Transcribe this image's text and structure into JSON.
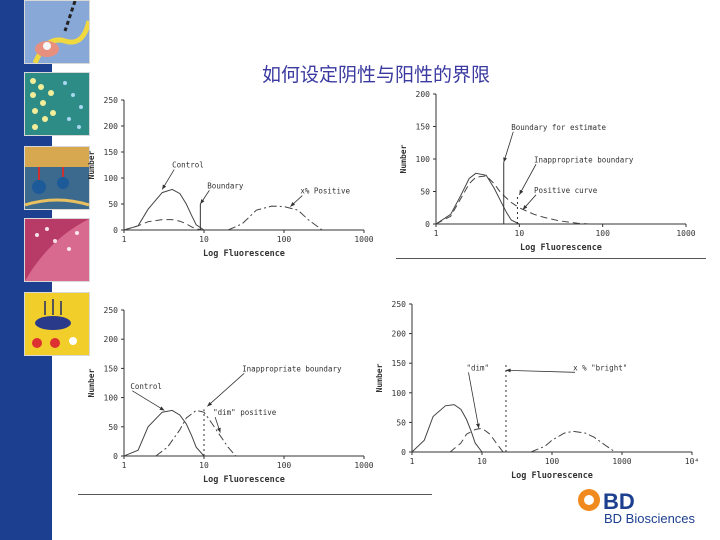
{
  "slide": {
    "title": "如何设定阴性与阳性的界限",
    "brand": "BD Biosciences",
    "brand_mark": "BD"
  },
  "chart_data": [
    {
      "type": "line",
      "xscale": "log",
      "xlim": [
        1,
        1000
      ],
      "ylim": [
        0,
        250
      ],
      "xticks": [
        "1",
        "10",
        "100",
        "1000"
      ],
      "yticks": [
        "0",
        "50",
        "100",
        "150",
        "200",
        "250"
      ],
      "xlabel": "Log Fluorescence",
      "ylabel": "Number",
      "series": [
        {
          "style": "solid",
          "x": [
            1,
            1.5,
            2,
            3,
            4,
            5,
            6,
            7,
            8,
            10
          ],
          "y": [
            0,
            8,
            40,
            72,
            78,
            70,
            50,
            28,
            10,
            0
          ]
        },
        {
          "style": "dashed",
          "x": [
            1,
            1.5,
            2,
            3,
            4,
            5,
            6,
            7,
            8,
            10
          ],
          "y": [
            0,
            8,
            16,
            20,
            20,
            17,
            12,
            6,
            2,
            0
          ]
        },
        {
          "style": "dashdot",
          "x": [
            20,
            30,
            45,
            70,
            100,
            150,
            200,
            300
          ],
          "y": [
            0,
            12,
            38,
            46,
            45,
            38,
            20,
            0
          ]
        }
      ],
      "vlines": [
        {
          "x": 9,
          "y1": 0,
          "y2": 50,
          "style": "solid"
        }
      ],
      "annotations": [
        {
          "text": "Control",
          "x": 4,
          "y": 120,
          "ax": 3,
          "ay": 78
        },
        {
          "text": "Boundary",
          "x": 11,
          "y": 80,
          "ax": 9,
          "ay": 50
        },
        {
          "text": "x% Positive",
          "x": 160,
          "y": 70,
          "ax": 120,
          "ay": 45
        }
      ]
    },
    {
      "type": "line",
      "xscale": "log",
      "xlim": [
        1,
        1000
      ],
      "ylim": [
        0,
        200
      ],
      "xticks": [
        "1",
        "10",
        "100",
        "1000"
      ],
      "yticks": [
        "0",
        "50",
        "100",
        "150",
        "200"
      ],
      "xlabel": "Log Fluorescence",
      "ylabel": "Number",
      "series": [
        {
          "style": "solid",
          "x": [
            1,
            1.5,
            2,
            2.5,
            3,
            4,
            5,
            6,
            7,
            8,
            10
          ],
          "y": [
            0,
            15,
            45,
            70,
            78,
            75,
            55,
            35,
            18,
            6,
            0
          ]
        },
        {
          "style": "dashed",
          "x": [
            1,
            1.5,
            2,
            2.5,
            3,
            4,
            5,
            6,
            8,
            10,
            15,
            20,
            30,
            50,
            70
          ],
          "y": [
            0,
            12,
            40,
            62,
            72,
            74,
            62,
            48,
            33,
            25,
            15,
            10,
            5,
            1,
            0
          ]
        }
      ],
      "vlines": [
        {
          "x": 6.5,
          "y1": 0,
          "y2": 95,
          "style": "solid"
        },
        {
          "x": 9.5,
          "y1": 0,
          "y2": 45,
          "style": "dotted"
        }
      ],
      "annotations": [
        {
          "text": "Boundary for estimate",
          "x": 8,
          "y": 145,
          "ax": 6.5,
          "ay": 95
        },
        {
          "text": "Inappropriate boundary",
          "x": 15,
          "y": 95,
          "ax": 10,
          "ay": 45
        },
        {
          "text": "Positive curve",
          "x": 15,
          "y": 48,
          "ax": 11,
          "ay": 22
        }
      ]
    },
    {
      "type": "line",
      "xscale": "log",
      "xlim": [
        1,
        1000
      ],
      "ylim": [
        0,
        250
      ],
      "xticks": [
        "1",
        "10",
        "100",
        "1000"
      ],
      "yticks": [
        "0",
        "50",
        "100",
        "150",
        "200",
        "250"
      ],
      "xlabel": "Log Fluorescence",
      "ylabel": "Number",
      "series": [
        {
          "style": "solid",
          "x": [
            1,
            1.5,
            2,
            3,
            4,
            5,
            6,
            7,
            8,
            10
          ],
          "y": [
            0,
            10,
            50,
            75,
            78,
            70,
            55,
            35,
            15,
            0
          ]
        },
        {
          "style": "dashdot",
          "x": [
            2.5,
            3.5,
            5,
            6,
            8,
            10,
            12,
            15,
            20,
            25
          ],
          "y": [
            0,
            15,
            45,
            65,
            78,
            75,
            60,
            40,
            15,
            0
          ]
        }
      ],
      "vlines": [
        {
          "x": 10,
          "y1": 0,
          "y2": 80,
          "style": "dotted"
        }
      ],
      "annotations": [
        {
          "text": "Inappropriate boundary",
          "x": 30,
          "y": 145,
          "ax": 11,
          "ay": 85
        },
        {
          "text": "Control",
          "x": 1.2,
          "y": 115,
          "ax": 3.2,
          "ay": 78
        },
        {
          "text": "\"dim\" positive",
          "x": 13,
          "y": 70,
          "ax": 16,
          "ay": 40
        }
      ]
    },
    {
      "type": "line",
      "xscale": "log",
      "xlim": [
        1,
        10000
      ],
      "ylim": [
        0,
        250
      ],
      "xticks": [
        "1",
        "10",
        "100",
        "1000",
        "10⁴"
      ],
      "yticks": [
        "0",
        "50",
        "100",
        "150",
        "200",
        "250"
      ],
      "xlabel": "Log Fluorescence",
      "ylabel": "Number",
      "series": [
        {
          "style": "solid",
          "x": [
            1,
            1.5,
            2,
            3,
            4,
            5,
            6,
            7,
            8,
            10
          ],
          "y": [
            0,
            20,
            60,
            78,
            80,
            72,
            55,
            35,
            15,
            0
          ]
        },
        {
          "style": "dashed",
          "x": [
            3.5,
            5,
            6,
            8,
            10,
            13,
            16,
            20
          ],
          "y": [
            0,
            15,
            30,
            38,
            40,
            30,
            15,
            0
          ]
        },
        {
          "style": "dashdot",
          "x": [
            50,
            80,
            100,
            150,
            200,
            300,
            400,
            600,
            800
          ],
          "y": [
            0,
            10,
            20,
            32,
            35,
            32,
            25,
            10,
            0
          ]
        }
      ],
      "vlines": [
        {
          "x": 22,
          "y1": 0,
          "y2": 150,
          "style": "dotted"
        }
      ],
      "annotations": [
        {
          "text": "\"dim\"",
          "x": 6,
          "y": 138,
          "ax": 9,
          "ay": 40
        },
        {
          "text": "x % \"bright\"",
          "x": 200,
          "y": 138,
          "ax": 22,
          "ay": 138
        }
      ]
    }
  ]
}
